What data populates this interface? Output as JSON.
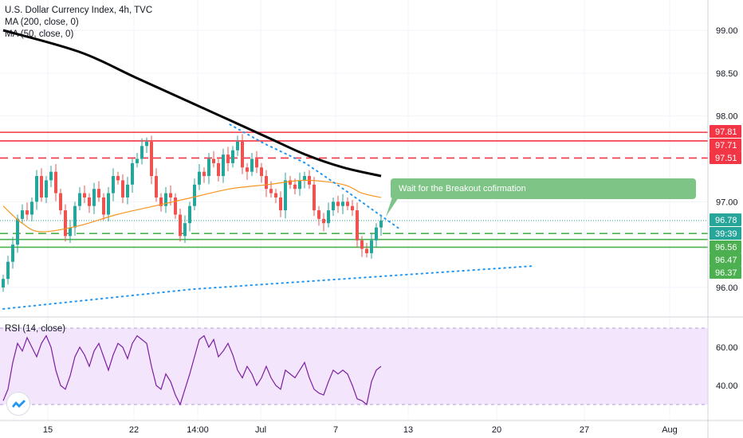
{
  "legend": {
    "title": "U.S. Dollar Currency Index, 4h, TVC",
    "ma200": "MA (200, close, 0)",
    "ma50": "MA (50, close, 0)",
    "rsi": "RSI (14, close)"
  },
  "callout": "Wait for the Breakout cofirmation",
  "colors": {
    "up": "#26a69a",
    "down": "#ef5350",
    "ma200": "#000000",
    "ma50": "#f7941d",
    "resistance": "#f23645",
    "support": "#4caf50",
    "trendline": "#2196f3",
    "rsi_line": "#7b1fa2",
    "rsi_band": "#f3e5fb",
    "callout": "#7dc486",
    "price_tag": "#26a69a"
  },
  "chart_data": [
    {
      "type": "candlestick",
      "title": "U.S. Dollar Currency Index, 4h, TVC",
      "x_ticks": [
        "15",
        "22",
        "14:00",
        "Jul",
        "7",
        "13",
        "20",
        "27",
        "Aug"
      ],
      "y_ticks": [
        "99.00",
        "98.50",
        "98.00",
        "97.00",
        "96.00"
      ],
      "ylim": [
        95.75,
        99.2
      ],
      "grid": true,
      "legend_position": "top-left",
      "price_tags": [
        {
          "label": "97.81",
          "value": 97.81,
          "kind": "resistance"
        },
        {
          "label": "97.71",
          "value": 97.71,
          "kind": "resistance"
        },
        {
          "label": "97.51",
          "value": 97.51,
          "kind": "resistance"
        },
        {
          "label": "96.78",
          "value": 96.78,
          "kind": "last"
        },
        {
          "label": "39:39",
          "value": 96.64,
          "kind": "countdown"
        },
        {
          "label": "96.56",
          "value": 96.56,
          "kind": "support"
        },
        {
          "label": "96.47",
          "value": 96.47,
          "kind": "support"
        },
        {
          "label": "96.37",
          "value": 96.37,
          "kind": "support"
        }
      ],
      "horizontal_levels": [
        {
          "value": 97.81,
          "style": "solid",
          "color": "resistance"
        },
        {
          "value": 97.71,
          "style": "solid",
          "color": "resistance"
        },
        {
          "value": 97.51,
          "style": "dashed",
          "color": "resistance"
        },
        {
          "value": 96.63,
          "style": "dashed",
          "color": "support"
        },
        {
          "value": 96.56,
          "style": "solid",
          "color": "support"
        },
        {
          "value": 96.47,
          "style": "solid",
          "color": "support"
        },
        {
          "value": 96.78,
          "style": "dotted",
          "color": "up"
        }
      ],
      "candles_close": [
        96.1,
        96.3,
        96.5,
        96.8,
        96.9,
        96.85,
        97.0,
        97.3,
        97.05,
        97.25,
        97.35,
        97.1,
        96.9,
        96.6,
        96.7,
        96.95,
        97.1,
        97.05,
        96.95,
        97.15,
        97.05,
        96.85,
        97.1,
        97.3,
        97.25,
        97.05,
        97.2,
        97.45,
        97.5,
        97.65,
        97.7,
        97.3,
        97.05,
        96.95,
        97.1,
        97.05,
        96.85,
        96.6,
        96.75,
        96.95,
        97.2,
        97.35,
        97.3,
        97.5,
        97.45,
        97.3,
        97.55,
        97.45,
        97.6,
        97.7,
        97.4,
        97.35,
        97.5,
        97.4,
        97.3,
        97.15,
        97.1,
        97.05,
        96.9,
        97.25,
        97.2,
        97.15,
        97.25,
        97.3,
        97.2,
        96.9,
        96.8,
        96.75,
        96.9,
        97.0,
        96.95,
        97.0,
        96.95,
        96.9,
        96.55,
        96.45,
        96.4,
        96.55,
        96.7,
        96.78
      ],
      "ma200_points": [
        [
          0,
          99.0
        ],
        [
          0.2,
          98.75
        ],
        [
          0.35,
          98.45
        ],
        [
          0.5,
          98.15
        ],
        [
          0.6,
          97.95
        ],
        [
          0.7,
          97.75
        ],
        [
          0.8,
          97.55
        ],
        [
          0.9,
          97.4
        ],
        [
          1.0,
          97.3
        ]
      ],
      "ma50_points": [
        [
          0,
          96.95
        ],
        [
          0.05,
          96.75
        ],
        [
          0.1,
          96.65
        ],
        [
          0.2,
          96.72
        ],
        [
          0.3,
          96.85
        ],
        [
          0.4,
          96.95
        ],
        [
          0.5,
          97.05
        ],
        [
          0.6,
          97.15
        ],
        [
          0.7,
          97.2
        ],
        [
          0.8,
          97.25
        ],
        [
          0.9,
          97.2
        ],
        [
          0.95,
          97.1
        ],
        [
          1.0,
          97.05
        ]
      ],
      "trendline_down": [
        [
          0.6,
          97.9
        ],
        [
          0.69,
          97.68
        ],
        [
          0.8,
          97.45
        ],
        [
          0.9,
          97.15
        ],
        [
          1.05,
          96.68
        ]
      ],
      "trendline_up": [
        [
          0,
          95.75
        ],
        [
          0.5,
          95.98
        ],
        [
          1.4,
          96.25
        ]
      ]
    },
    {
      "type": "line",
      "title": "RSI (14, close)",
      "y_ticks": [
        "60.00",
        "40.00"
      ],
      "ylim": [
        25,
        75
      ],
      "band": [
        30,
        70
      ],
      "values": [
        32,
        38,
        52,
        62,
        58,
        65,
        60,
        55,
        62,
        66,
        60,
        48,
        40,
        38,
        45,
        55,
        60,
        56,
        50,
        58,
        62,
        55,
        48,
        56,
        62,
        60,
        54,
        62,
        66,
        64,
        62,
        50,
        40,
        38,
        46,
        42,
        35,
        30,
        38,
        46,
        55,
        64,
        66,
        60,
        64,
        55,
        58,
        62,
        56,
        48,
        44,
        50,
        46,
        40,
        44,
        50,
        44,
        40,
        38,
        48,
        46,
        44,
        48,
        52,
        44,
        38,
        36,
        35,
        42,
        48,
        46,
        48,
        46,
        40,
        33,
        32,
        30,
        42,
        48,
        50
      ]
    }
  ]
}
